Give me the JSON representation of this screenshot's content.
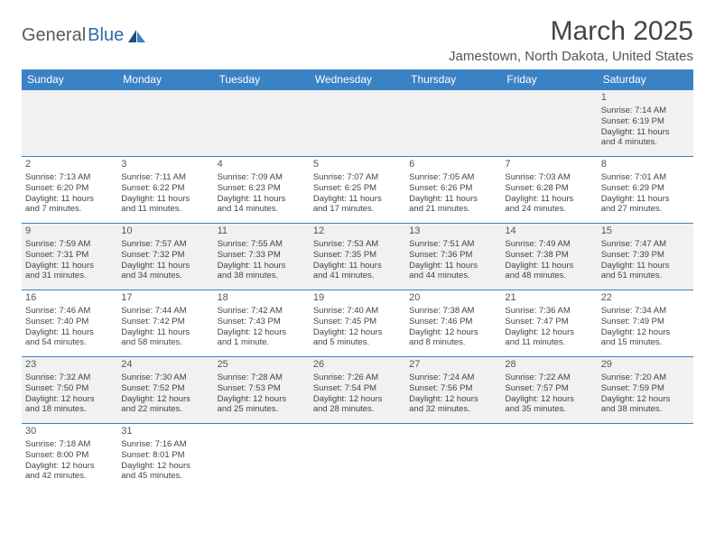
{
  "brand": {
    "part1": "General",
    "part2": "Blue"
  },
  "title": "March 2025",
  "location": "Jamestown, North Dakota, United States",
  "colors": {
    "header_bg": "#3b82c4",
    "header_fg": "#ffffff",
    "row_alt_bg": "#f1f1f1",
    "border": "#3b82c4",
    "text": "#444444",
    "brand_gray": "#5a5a5a",
    "brand_blue": "#2f6aa8"
  },
  "weekdays": [
    "Sunday",
    "Monday",
    "Tuesday",
    "Wednesday",
    "Thursday",
    "Friday",
    "Saturday"
  ],
  "weeks": [
    [
      null,
      null,
      null,
      null,
      null,
      null,
      {
        "n": "1",
        "sr": "Sunrise: 7:14 AM",
        "ss": "Sunset: 6:19 PM",
        "d1": "Daylight: 11 hours",
        "d2": "and 4 minutes."
      }
    ],
    [
      {
        "n": "2",
        "sr": "Sunrise: 7:13 AM",
        "ss": "Sunset: 6:20 PM",
        "d1": "Daylight: 11 hours",
        "d2": "and 7 minutes."
      },
      {
        "n": "3",
        "sr": "Sunrise: 7:11 AM",
        "ss": "Sunset: 6:22 PM",
        "d1": "Daylight: 11 hours",
        "d2": "and 11 minutes."
      },
      {
        "n": "4",
        "sr": "Sunrise: 7:09 AM",
        "ss": "Sunset: 6:23 PM",
        "d1": "Daylight: 11 hours",
        "d2": "and 14 minutes."
      },
      {
        "n": "5",
        "sr": "Sunrise: 7:07 AM",
        "ss": "Sunset: 6:25 PM",
        "d1": "Daylight: 11 hours",
        "d2": "and 17 minutes."
      },
      {
        "n": "6",
        "sr": "Sunrise: 7:05 AM",
        "ss": "Sunset: 6:26 PM",
        "d1": "Daylight: 11 hours",
        "d2": "and 21 minutes."
      },
      {
        "n": "7",
        "sr": "Sunrise: 7:03 AM",
        "ss": "Sunset: 6:28 PM",
        "d1": "Daylight: 11 hours",
        "d2": "and 24 minutes."
      },
      {
        "n": "8",
        "sr": "Sunrise: 7:01 AM",
        "ss": "Sunset: 6:29 PM",
        "d1": "Daylight: 11 hours",
        "d2": "and 27 minutes."
      }
    ],
    [
      {
        "n": "9",
        "sr": "Sunrise: 7:59 AM",
        "ss": "Sunset: 7:31 PM",
        "d1": "Daylight: 11 hours",
        "d2": "and 31 minutes."
      },
      {
        "n": "10",
        "sr": "Sunrise: 7:57 AM",
        "ss": "Sunset: 7:32 PM",
        "d1": "Daylight: 11 hours",
        "d2": "and 34 minutes."
      },
      {
        "n": "11",
        "sr": "Sunrise: 7:55 AM",
        "ss": "Sunset: 7:33 PM",
        "d1": "Daylight: 11 hours",
        "d2": "and 38 minutes."
      },
      {
        "n": "12",
        "sr": "Sunrise: 7:53 AM",
        "ss": "Sunset: 7:35 PM",
        "d1": "Daylight: 11 hours",
        "d2": "and 41 minutes."
      },
      {
        "n": "13",
        "sr": "Sunrise: 7:51 AM",
        "ss": "Sunset: 7:36 PM",
        "d1": "Daylight: 11 hours",
        "d2": "and 44 minutes."
      },
      {
        "n": "14",
        "sr": "Sunrise: 7:49 AM",
        "ss": "Sunset: 7:38 PM",
        "d1": "Daylight: 11 hours",
        "d2": "and 48 minutes."
      },
      {
        "n": "15",
        "sr": "Sunrise: 7:47 AM",
        "ss": "Sunset: 7:39 PM",
        "d1": "Daylight: 11 hours",
        "d2": "and 51 minutes."
      }
    ],
    [
      {
        "n": "16",
        "sr": "Sunrise: 7:46 AM",
        "ss": "Sunset: 7:40 PM",
        "d1": "Daylight: 11 hours",
        "d2": "and 54 minutes."
      },
      {
        "n": "17",
        "sr": "Sunrise: 7:44 AM",
        "ss": "Sunset: 7:42 PM",
        "d1": "Daylight: 11 hours",
        "d2": "and 58 minutes."
      },
      {
        "n": "18",
        "sr": "Sunrise: 7:42 AM",
        "ss": "Sunset: 7:43 PM",
        "d1": "Daylight: 12 hours",
        "d2": "and 1 minute."
      },
      {
        "n": "19",
        "sr": "Sunrise: 7:40 AM",
        "ss": "Sunset: 7:45 PM",
        "d1": "Daylight: 12 hours",
        "d2": "and 5 minutes."
      },
      {
        "n": "20",
        "sr": "Sunrise: 7:38 AM",
        "ss": "Sunset: 7:46 PM",
        "d1": "Daylight: 12 hours",
        "d2": "and 8 minutes."
      },
      {
        "n": "21",
        "sr": "Sunrise: 7:36 AM",
        "ss": "Sunset: 7:47 PM",
        "d1": "Daylight: 12 hours",
        "d2": "and 11 minutes."
      },
      {
        "n": "22",
        "sr": "Sunrise: 7:34 AM",
        "ss": "Sunset: 7:49 PM",
        "d1": "Daylight: 12 hours",
        "d2": "and 15 minutes."
      }
    ],
    [
      {
        "n": "23",
        "sr": "Sunrise: 7:32 AM",
        "ss": "Sunset: 7:50 PM",
        "d1": "Daylight: 12 hours",
        "d2": "and 18 minutes."
      },
      {
        "n": "24",
        "sr": "Sunrise: 7:30 AM",
        "ss": "Sunset: 7:52 PM",
        "d1": "Daylight: 12 hours",
        "d2": "and 22 minutes."
      },
      {
        "n": "25",
        "sr": "Sunrise: 7:28 AM",
        "ss": "Sunset: 7:53 PM",
        "d1": "Daylight: 12 hours",
        "d2": "and 25 minutes."
      },
      {
        "n": "26",
        "sr": "Sunrise: 7:26 AM",
        "ss": "Sunset: 7:54 PM",
        "d1": "Daylight: 12 hours",
        "d2": "and 28 minutes."
      },
      {
        "n": "27",
        "sr": "Sunrise: 7:24 AM",
        "ss": "Sunset: 7:56 PM",
        "d1": "Daylight: 12 hours",
        "d2": "and 32 minutes."
      },
      {
        "n": "28",
        "sr": "Sunrise: 7:22 AM",
        "ss": "Sunset: 7:57 PM",
        "d1": "Daylight: 12 hours",
        "d2": "and 35 minutes."
      },
      {
        "n": "29",
        "sr": "Sunrise: 7:20 AM",
        "ss": "Sunset: 7:59 PM",
        "d1": "Daylight: 12 hours",
        "d2": "and 38 minutes."
      }
    ],
    [
      {
        "n": "30",
        "sr": "Sunrise: 7:18 AM",
        "ss": "Sunset: 8:00 PM",
        "d1": "Daylight: 12 hours",
        "d2": "and 42 minutes."
      },
      {
        "n": "31",
        "sr": "Sunrise: 7:16 AM",
        "ss": "Sunset: 8:01 PM",
        "d1": "Daylight: 12 hours",
        "d2": "and 45 minutes."
      },
      null,
      null,
      null,
      null,
      null
    ]
  ]
}
